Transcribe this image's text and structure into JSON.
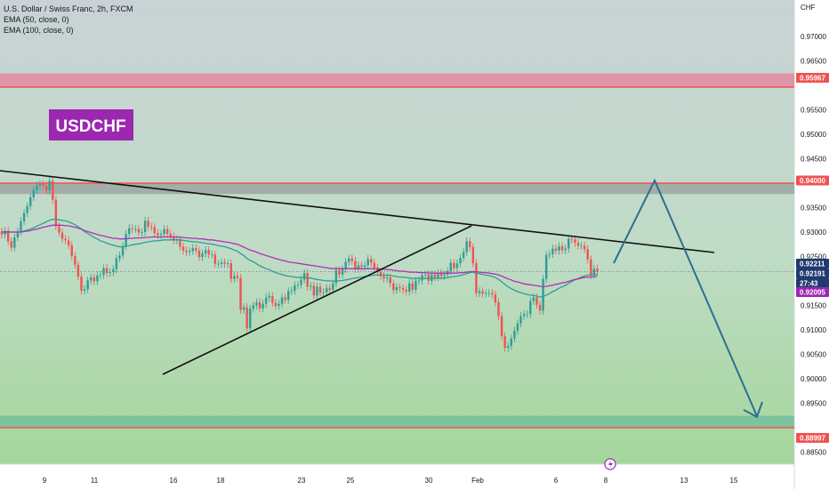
{
  "header": {
    "symbol_line": "U.S. Dollar / Swiss Franc, 2h, FXCM",
    "indicator_1": "EMA (50, close, 0)",
    "indicator_2": "EMA (100, close, 0)"
  },
  "logo_text": "USDCHF",
  "price_axis_unit": "CHF",
  "colors": {
    "bull": "#2f9e94",
    "bear": "#ef5350",
    "ema50": "#2f9e94",
    "ema100": "#b22fb4",
    "zone_red": "#e57f9b",
    "zone_gray": "#9aa39e",
    "logo_bg": "#9c27b0",
    "arrow": "#2d6f8f",
    "trendline": "#111111",
    "current_price": "#1e3a6e"
  },
  "chart_data": {
    "type": "candlestick",
    "title": "U.S. Dollar / Swiss Franc, 2h, FXCM",
    "ylim": [
      0.8825,
      0.9775
    ],
    "y_ticks": [
      "0.97000",
      "0.96500",
      "0.95500",
      "0.95000",
      "0.94500",
      "0.93500",
      "0.93000",
      "0.92500",
      "0.91500",
      "0.91000",
      "0.90500",
      "0.90000",
      "0.89500",
      "0.88500"
    ],
    "x_ticks": [
      "9",
      "11",
      "16",
      "18",
      "23",
      "25",
      "30",
      "Feb",
      "6",
      "8",
      "13",
      "15"
    ],
    "price_tags": [
      {
        "label": "0.95967",
        "value": 0.95967,
        "color": "#ef5350"
      },
      {
        "label": "0.94000",
        "value": 0.94,
        "color": "#ef5350"
      },
      {
        "label": "0.92211",
        "value": 0.92211,
        "color": "#1e3a6e"
      },
      {
        "label": "0.92191",
        "value": 0.92191,
        "color": "#1e3a6e"
      },
      {
        "label": "27:43",
        "value": 0.9209,
        "color": "#1e3a6e"
      },
      {
        "label": "0.92095",
        "value": 0.92,
        "color": "#9c27b0"
      },
      {
        "label": "0.88997",
        "value": 0.88997,
        "color": "#ef5350"
      }
    ],
    "zones": [
      {
        "name": "resistance-upper",
        "from": 0.95967,
        "to": 0.9625
      },
      {
        "name": "resistance",
        "from": 0.9378,
        "to": 0.94
      },
      {
        "name": "support",
        "from": 0.88997,
        "to": 0.8924
      }
    ],
    "key_levels": [
      0.95967,
      0.94,
      0.88997
    ],
    "current_price": 0.92191,
    "candles": {
      "close": [
        0.9295,
        0.9302,
        0.9281,
        0.9268,
        0.9289,
        0.9301,
        0.9322,
        0.9339,
        0.9353,
        0.9371,
        0.9386,
        0.9395,
        0.9398,
        0.9395,
        0.9385,
        0.9405,
        0.9366,
        0.9312,
        0.9299,
        0.9286,
        0.9283,
        0.9273,
        0.9251,
        0.9233,
        0.9209,
        0.918,
        0.9183,
        0.9201,
        0.9207,
        0.9199,
        0.9211,
        0.9212,
        0.9226,
        0.9216,
        0.9218,
        0.9224,
        0.9246,
        0.9252,
        0.9271,
        0.9296,
        0.9308,
        0.9306,
        0.9306,
        0.9299,
        0.93,
        0.9323,
        0.9311,
        0.931,
        0.9298,
        0.9294,
        0.9296,
        0.9306,
        0.9296,
        0.9291,
        0.9283,
        0.9285,
        0.927,
        0.9262,
        0.9259,
        0.9261,
        0.9267,
        0.9262,
        0.9249,
        0.9256,
        0.9263,
        0.9254,
        0.9254,
        0.9235,
        0.9235,
        0.9238,
        0.9235,
        0.9236,
        0.9204,
        0.921,
        0.9206,
        0.9141,
        0.9146,
        0.9103,
        0.9143,
        0.915,
        0.9156,
        0.9144,
        0.9153,
        0.9166,
        0.9169,
        0.9155,
        0.9149,
        0.9153,
        0.9166,
        0.9161,
        0.9179,
        0.918,
        0.9191,
        0.9192,
        0.9203,
        0.9216,
        0.9188,
        0.919,
        0.917,
        0.9188,
        0.9176,
        0.9177,
        0.9185,
        0.9182,
        0.9195,
        0.9222,
        0.9213,
        0.9224,
        0.9239,
        0.9246,
        0.9241,
        0.9224,
        0.9232,
        0.9229,
        0.9232,
        0.9245,
        0.9237,
        0.9227,
        0.9218,
        0.921,
        0.9205,
        0.9207,
        0.9195,
        0.9181,
        0.9187,
        0.9185,
        0.9182,
        0.9178,
        0.9195,
        0.9182,
        0.92,
        0.9201,
        0.9212,
        0.9213,
        0.92,
        0.9213,
        0.9207,
        0.9216,
        0.921,
        0.9213,
        0.922,
        0.9237,
        0.9226,
        0.9236,
        0.9247,
        0.9259,
        0.9281,
        0.9269,
        0.9236,
        0.9175,
        0.9179,
        0.9174,
        0.9175,
        0.9175,
        0.9172,
        0.9156,
        0.9128,
        0.9087,
        0.9063,
        0.9067,
        0.9082,
        0.9098,
        0.9113,
        0.9128,
        0.9132,
        0.9132,
        0.9159,
        0.9166,
        0.9151,
        0.9139,
        0.9204,
        0.9253,
        0.9255,
        0.9266,
        0.9262,
        0.9271,
        0.9263,
        0.9266,
        0.9286,
        0.9285,
        0.9278,
        0.9272,
        0.9272,
        0.9265,
        0.9244,
        0.9212,
        0.9225,
        0.9219
      ]
    },
    "ema_50": [
      0.93,
      0.9301,
      0.9301,
      0.93,
      0.93,
      0.93,
      0.9301,
      0.9302,
      0.9304,
      0.9306,
      0.9309,
      0.9312,
      0.9315,
      0.9318,
      0.9321,
      0.9324,
      0.9326,
      0.9326,
      0.9325,
      0.9324,
      0.9323,
      0.9321,
      0.9318,
      0.9315,
      0.9311,
      0.9306,
      0.9301,
      0.9297,
      0.9293,
      0.9289,
      0.9286,
      0.9282,
      0.928,
      0.9277,
      0.9275,
      0.9273,
      0.9271,
      0.927,
      0.927,
      0.9271,
      0.9272,
      0.9274,
      0.9275,
      0.9276,
      0.9277,
      0.9279,
      0.928,
      0.9281,
      0.9282,
      0.9282,
      0.9283,
      0.9284,
      0.9284,
      0.9284,
      0.9284,
      0.9284,
      0.9284,
      0.9283,
      0.9282,
      0.9281,
      0.928,
      0.928,
      0.9279,
      0.9278,
      0.9277,
      0.9276,
      0.9275,
      0.9274,
      0.9272,
      0.9271,
      0.927,
      0.9268,
      0.9266,
      0.9263,
      0.9261,
      0.9256,
      0.9252,
      0.9246,
      0.9242,
      0.9239,
      0.9235,
      0.9231,
      0.9228,
      0.9225,
      0.9223,
      0.922,
      0.9217,
      0.9215,
      0.9213,
      0.9211,
      0.921,
      0.9209,
      0.9208,
      0.9207,
      0.9207,
      0.9207,
      0.9206,
      0.9206,
      0.9204,
      0.9203,
      0.9202,
      0.9201,
      0.92,
      0.92,
      0.9199,
      0.92,
      0.92,
      0.9201,
      0.9202,
      0.9203,
      0.9205,
      0.9206,
      0.9207,
      0.9208,
      0.9209,
      0.921,
      0.9211,
      0.9212,
      0.9212,
      0.9212,
      0.9212,
      0.9212,
      0.9211,
      0.921,
      0.9209,
      0.9208,
      0.9208,
      0.9207,
      0.9206,
      0.9205,
      0.9205,
      0.9205,
      0.9205,
      0.9205,
      0.9205,
      0.9205,
      0.9205,
      0.9206,
      0.9206,
      0.9206,
      0.9207,
      0.9208,
      0.9209,
      0.921,
      0.9211,
      0.9213,
      0.9215,
      0.9217,
      0.9218,
      0.9216,
      0.9215,
      0.9213,
      0.9212,
      0.9211,
      0.9209,
      0.9207,
      0.9203,
      0.9198,
      0.9193,
      0.9188,
      0.9184,
      0.9181,
      0.9178,
      0.9176,
      0.9174,
      0.9172,
      0.9171,
      0.917,
      0.9169,
      0.9167,
      0.9168,
      0.9171,
      0.9174,
      0.9178,
      0.9181,
      0.9185,
      0.9188,
      0.9191,
      0.9195,
      0.9199,
      0.9202,
      0.9205,
      0.9208,
      0.921,
      0.9212,
      0.9212,
      0.9213,
      0.9213
    ],
    "ema_100": [
      0.93,
      0.93,
      0.93,
      0.93,
      0.93,
      0.93,
      0.93,
      0.9301,
      0.9302,
      0.9303,
      0.9305,
      0.9306,
      0.9308,
      0.931,
      0.9311,
      0.9313,
      0.9314,
      0.9314,
      0.9314,
      0.9314,
      0.9313,
      0.9313,
      0.9311,
      0.931,
      0.9308,
      0.9306,
      0.9303,
      0.9301,
      0.9299,
      0.9297,
      0.9295,
      0.9293,
      0.9292,
      0.929,
      0.9289,
      0.9287,
      0.9287,
      0.9286,
      0.9286,
      0.9286,
      0.9287,
      0.9287,
      0.9288,
      0.9288,
      0.9288,
      0.9289,
      0.9289,
      0.929,
      0.929,
      0.929,
      0.929,
      0.929,
      0.929,
      0.929,
      0.929,
      0.929,
      0.9289,
      0.9289,
      0.9288,
      0.9288,
      0.9287,
      0.9287,
      0.9286,
      0.9286,
      0.9285,
      0.9284,
      0.9284,
      0.9283,
      0.9282,
      0.9281,
      0.928,
      0.9279,
      0.9278,
      0.9276,
      0.9275,
      0.9272,
      0.9269,
      0.9266,
      0.9263,
      0.9261,
      0.9259,
      0.9256,
      0.9254,
      0.9252,
      0.925,
      0.9248,
      0.9246,
      0.9244,
      0.9242,
      0.9241,
      0.9239,
      0.9238,
      0.9237,
      0.9236,
      0.9235,
      0.9234,
      0.9233,
      0.9232,
      0.9231,
      0.923,
      0.9229,
      0.9228,
      0.9227,
      0.9226,
      0.9225,
      0.9225,
      0.9225,
      0.9225,
      0.9225,
      0.9225,
      0.9225,
      0.9225,
      0.9225,
      0.9225,
      0.9225,
      0.9225,
      0.9225,
      0.9225,
      0.9225,
      0.9224,
      0.9224,
      0.9223,
      0.9223,
      0.9222,
      0.9221,
      0.922,
      0.922,
      0.9219,
      0.9218,
      0.9218,
      0.9218,
      0.9217,
      0.9217,
      0.9217,
      0.9216,
      0.9216,
      0.9216,
      0.9216,
      0.9216,
      0.9216,
      0.9216,
      0.9216,
      0.9216,
      0.9216,
      0.9217,
      0.9217,
      0.9218,
      0.9219,
      0.9219,
      0.9219,
      0.9218,
      0.9217,
      0.9217,
      0.9216,
      0.9215,
      0.9214,
      0.9212,
      0.921,
      0.9207,
      0.9204,
      0.9202,
      0.9199,
      0.9198,
      0.9196,
      0.9194,
      0.9193,
      0.9192,
      0.9191,
      0.919,
      0.9189,
      0.9188,
      0.9189,
      0.919,
      0.9191,
      0.9193,
      0.9194,
      0.9196,
      0.9197,
      0.9199,
      0.9201,
      0.9203,
      0.9204,
      0.9206,
      0.9207,
      0.9208,
      0.9208,
      0.9209,
      0.9209
    ]
  }
}
